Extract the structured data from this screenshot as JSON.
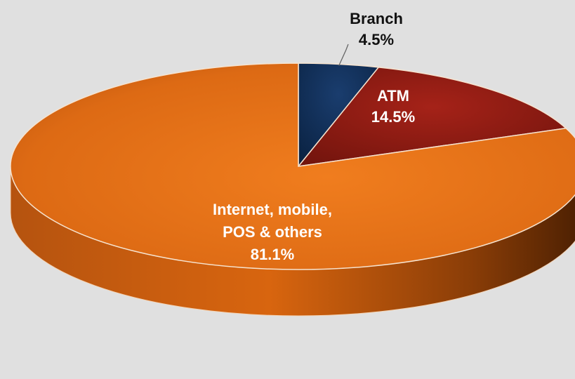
{
  "chart_data": {
    "type": "pie",
    "title": "",
    "style": "3d",
    "slices": [
      {
        "label": "Branch",
        "value": 4.5,
        "value_label": "4.5%",
        "color": "#0d2a4f",
        "label_color": "#111111"
      },
      {
        "label": "ATM",
        "value": 14.5,
        "value_label": "14.5%",
        "color": "#8b1a12",
        "label_color": "#ffffff"
      },
      {
        "label": "Internet, mobile, POS & others",
        "value": 81.1,
        "value_label": "81.1%",
        "color": "#e06a14",
        "label_color": "#ffffff"
      }
    ]
  }
}
